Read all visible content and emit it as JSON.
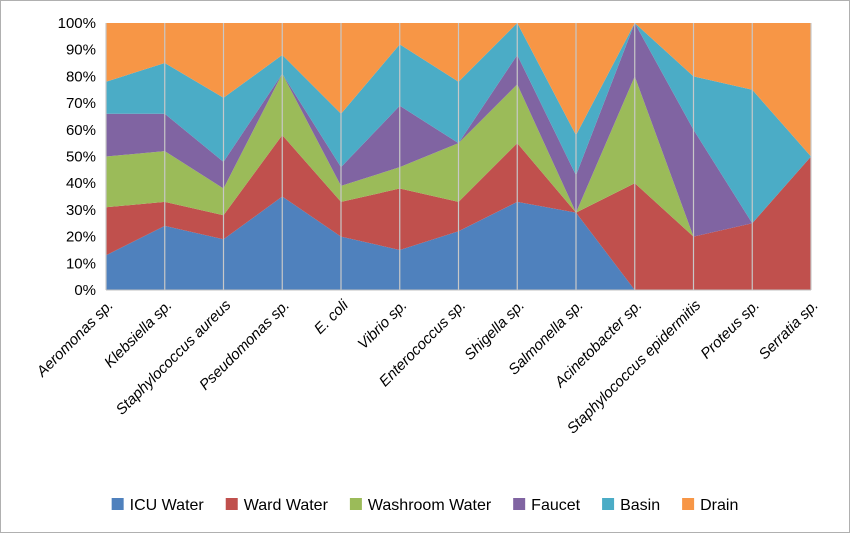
{
  "chart_data": {
    "type": "area",
    "stacked": "percent",
    "categories": [
      "Aeromonas sp.",
      "Klebsiella sp.",
      "Staphylococcus aureus",
      "Pseudomonas sp.",
      "E. coli",
      "Vibrio sp.",
      "Enterococcus sp.",
      "Shigella sp.",
      "Salmonella sp.",
      "Acinetobacter sp.",
      "Staphylococcus epidermitis",
      "Proteus sp.",
      "Serratia sp."
    ],
    "series": [
      {
        "name": "ICU Water",
        "color": "#4f81bd",
        "values": [
          13,
          24,
          19,
          35,
          20,
          15,
          22,
          33,
          29,
          0,
          0,
          0,
          0
        ]
      },
      {
        "name": "Ward Water",
        "color": "#c0504d",
        "values": [
          18,
          9,
          9,
          23,
          13,
          23,
          11,
          22,
          0,
          40,
          20,
          25,
          50
        ]
      },
      {
        "name": "Washroom Water",
        "color": "#9bbb59",
        "values": [
          19,
          19,
          10,
          23,
          6,
          8,
          22,
          22,
          0,
          40,
          0,
          0,
          0
        ]
      },
      {
        "name": "Faucet",
        "color": "#8064a2",
        "values": [
          16,
          14,
          10,
          0,
          7,
          23,
          0,
          11,
          14,
          20,
          40,
          0,
          0
        ]
      },
      {
        "name": "Basin",
        "color": "#4bacc6",
        "values": [
          12,
          19,
          24,
          7,
          20,
          23,
          23,
          12,
          15,
          0,
          20,
          50,
          0
        ]
      },
      {
        "name": "Drain",
        "color": "#f79646",
        "values": [
          22,
          15,
          28,
          12,
          34,
          8,
          22,
          0,
          42,
          0,
          20,
          25,
          50
        ]
      }
    ],
    "y_ticks": [
      "0%",
      "10%",
      "20%",
      "30%",
      "40%",
      "50%",
      "60%",
      "70%",
      "80%",
      "90%",
      "100%"
    ],
    "ylim": [
      0,
      100
    ],
    "grid": "vertical lines at each category",
    "legend_position": "bottom"
  }
}
